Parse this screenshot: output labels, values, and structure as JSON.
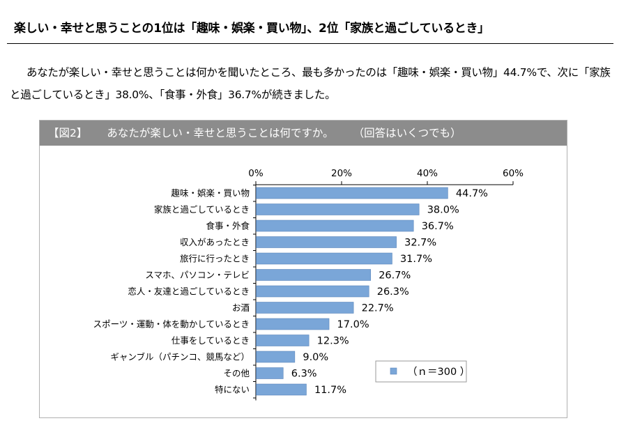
{
  "headline": "楽しい・幸せと思うことの1位は「趣味・娯楽・買い物」、2位「家族と過ごしているとき」",
  "body_text": "あなたが楽しい・幸せと思うことは何かを聞いたところ、最も多かったのは「趣味・娯楽・買い物」44.7%で、次に「家族と過ごしているとき」38.0%、「食事・外食」36.7%が続きました。",
  "figure": {
    "label": "【図2】",
    "title": "あなたが楽しい・幸せと思うことは何ですか。",
    "note": "（回答はいくつでも）"
  },
  "legend_label": "（ｎ＝300 ）",
  "colors": {
    "bar": "#7aa6d8",
    "bar_stroke": "#5b86bb",
    "header_bg": "#8c8c8c"
  },
  "chart_data": {
    "type": "bar",
    "orientation": "horizontal",
    "title": "あなたが楽しい・幸せと思うことは何ですか。",
    "xlabel": "",
    "ylabel": "",
    "xlim": [
      0,
      60
    ],
    "tick_values": [
      0,
      20,
      40,
      60
    ],
    "tick_labels": [
      "0%",
      "20%",
      "40%",
      "60%"
    ],
    "grid": false,
    "legend_placement": "bottom-right",
    "series": [
      {
        "name": "（ｎ＝300 ）",
        "values": [
          44.7,
          38.0,
          36.7,
          32.7,
          31.7,
          26.7,
          26.3,
          22.7,
          17.0,
          12.3,
          9.0,
          6.3,
          11.7
        ]
      }
    ],
    "categories": [
      "趣味・娯楽・買い物",
      "家族と過ごしているとき",
      "食事・外食",
      "収入があったとき",
      "旅行に行ったとき",
      "スマホ、パソコン・テレビ",
      "恋人・友達と過ごしているとき",
      "お酒",
      "スポーツ・運動・体を動かしているとき",
      "仕事をしているとき",
      "ギャンブル（パチンコ、競馬など）",
      "その他",
      "特にない"
    ],
    "value_labels": [
      "44.7%",
      "38.0%",
      "36.7%",
      "32.7%",
      "31.7%",
      "26.7%",
      "26.3%",
      "22.7%",
      "17.0%",
      "12.3%",
      "9.0%",
      "6.3%",
      "11.7%"
    ]
  }
}
